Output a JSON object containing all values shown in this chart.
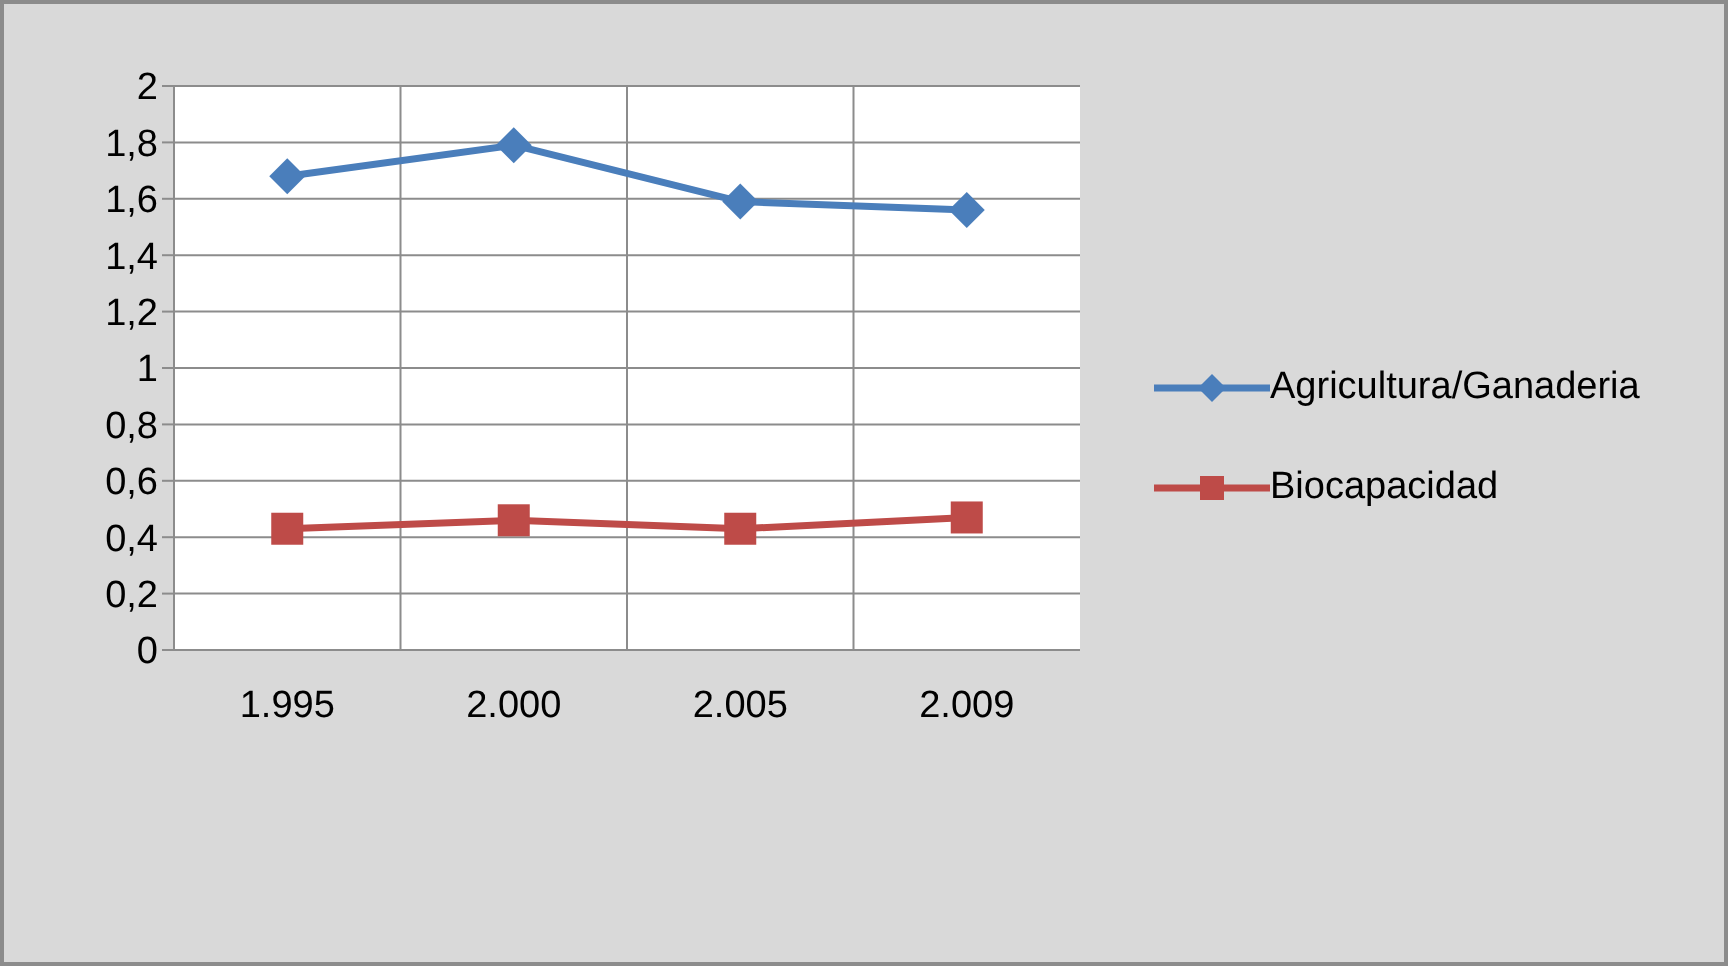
{
  "chart_data": {
    "type": "line",
    "categories": [
      "1.995",
      "2.000",
      "2.005",
      "2.009"
    ],
    "series": [
      {
        "name": "Agricultura/Ganaderia",
        "color": "#4a7ebb",
        "marker": "diamond",
        "values": [
          1.68,
          1.79,
          1.59,
          1.56
        ]
      },
      {
        "name": "Biocapacidad",
        "color": "#be4b48",
        "marker": "square",
        "values": [
          0.43,
          0.46,
          0.43,
          0.47
        ]
      }
    ],
    "ylim": [
      0,
      2
    ],
    "yticks": [
      0,
      {
        "value": 0.2,
        "label": "0,2"
      },
      {
        "value": 0.4,
        "label": "0,4"
      },
      {
        "value": 0.6,
        "label": "0,6"
      },
      {
        "value": 0.8,
        "label": "0,8"
      },
      1,
      {
        "value": 1.2,
        "label": "1,2"
      },
      {
        "value": 1.4,
        "label": "1,4"
      },
      {
        "value": 1.6,
        "label": "1,6"
      },
      {
        "value": 1.8,
        "label": "1,8"
      },
      2
    ],
    "grid": true,
    "legend": "right"
  }
}
